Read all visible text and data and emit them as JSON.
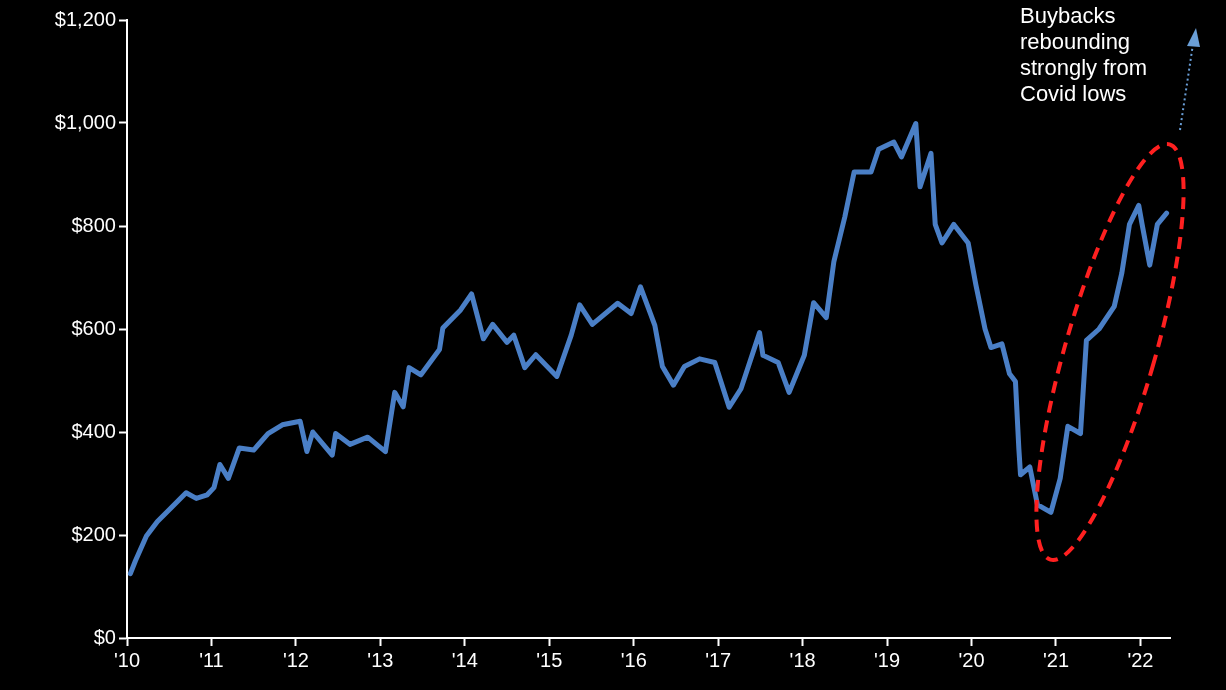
{
  "chart_data": {
    "type": "line",
    "annotations": [
      "Buybacks rebounding strongly from Covid lows"
    ],
    "x": [
      2010.04,
      2010.1,
      2010.23,
      2010.36,
      2010.7,
      2010.82,
      2010.95,
      2011.03,
      2011.1,
      2011.2,
      2011.33,
      2011.5,
      2011.67,
      2011.84,
      2012.05,
      2012.13,
      2012.2,
      2012.43,
      2012.47,
      2012.64,
      2012.85,
      2013.06,
      2013.17,
      2013.27,
      2013.34,
      2013.48,
      2013.7,
      2013.74,
      2013.95,
      2014.08,
      2014.22,
      2014.33,
      2014.5,
      2014.58,
      2014.71,
      2014.84,
      2015.09,
      2015.26,
      2015.36,
      2015.51,
      2015.81,
      2015.97,
      2016.08,
      2016.25,
      2016.34,
      2016.47,
      2016.6,
      2016.78,
      2016.96,
      2017.13,
      2017.27,
      2017.49,
      2017.53,
      2017.71,
      2017.84,
      2018.02,
      2018.13,
      2018.28,
      2018.37,
      2018.5,
      2018.61,
      2018.81,
      2018.9,
      2019.08,
      2019.17,
      2019.34,
      2019.39,
      2019.52,
      2019.57,
      2019.65,
      2019.79,
      2019.96,
      2020.05,
      2020.16,
      2020.23,
      2020.36,
      2020.45,
      2020.52,
      2020.56,
      2020.58,
      2020.69,
      2020.78,
      2020.94,
      2021.05,
      2021.14,
      2021.29,
      2021.36,
      2021.51,
      2021.69,
      2021.78,
      2021.87,
      2021.98,
      2022.02,
      2022.11,
      2022.2,
      2022.31
    ],
    "series": [
      {
        "color": "#4a7fc6",
        "values": [
          125,
          150,
          198,
          226,
          282,
          271,
          278,
          292,
          337,
          310,
          369,
          365,
          397,
          414,
          421,
          362,
          400,
          355,
          397,
          376,
          390,
          362,
          477,
          449,
          525,
          511,
          560,
          602,
          637,
          668,
          581,
          609,
          574,
          588,
          525,
          550,
          508,
          588,
          647,
          609,
          650,
          630,
          682,
          607,
          527,
          491,
          527,
          542,
          535,
          448,
          484,
          593,
          549,
          535,
          477,
          549,
          651,
          622,
          731,
          818,
          905,
          905,
          949,
          963,
          934,
          999,
          876,
          941,
          803,
          767,
          803,
          767,
          687,
          600,
          564,
          571,
          513,
          498,
          368,
          317,
          332,
          259,
          244,
          310,
          411,
          397,
          578,
          600,
          644,
          709,
          803,
          840,
          803,
          724,
          803,
          825
        ]
      }
    ],
    "xlim": [
      2010,
      2022.35
    ],
    "xticks": [
      {
        "value": 2010,
        "label": "'10"
      },
      {
        "value": 2011,
        "label": "'11"
      },
      {
        "value": 2012,
        "label": "'12"
      },
      {
        "value": 2013,
        "label": "'13"
      },
      {
        "value": 2014,
        "label": "'14"
      },
      {
        "value": 2015,
        "label": "'15"
      },
      {
        "value": 2016,
        "label": "'16"
      },
      {
        "value": 2017,
        "label": "'17"
      },
      {
        "value": 2018,
        "label": "'18"
      },
      {
        "value": 2019,
        "label": "'19"
      },
      {
        "value": 2020,
        "label": "'20"
      },
      {
        "value": 2021,
        "label": "'21"
      },
      {
        "value": 2022,
        "label": "'22"
      }
    ],
    "ylim": [
      0,
      1200
    ],
    "yticks": [
      {
        "value": 0,
        "label": "$0"
      },
      {
        "value": 200,
        "label": "$200"
      },
      {
        "value": 400,
        "label": "$400"
      },
      {
        "value": 600,
        "label": "$600"
      },
      {
        "value": 800,
        "label": "$800"
      },
      {
        "value": 1000,
        "label": "$1,000"
      },
      {
        "value": 1200,
        "label": "$1,200"
      }
    ],
    "grid": false,
    "legend": false,
    "marker": "none",
    "line_style": "solid"
  }
}
